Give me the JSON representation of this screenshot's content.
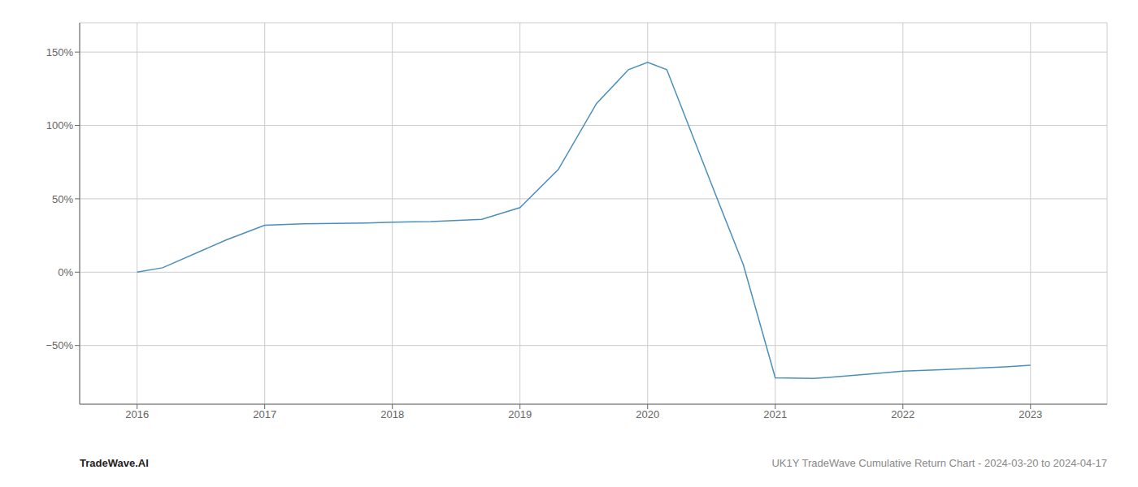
{
  "chart_data": {
    "type": "line",
    "title": "UK1Y TradeWave Cumulative Return Chart - 2024-03-20 to 2024-04-17",
    "annotations": [
      "TradeWave.AI"
    ],
    "x": [
      2016.0,
      2016.2,
      2016.7,
      2017.0,
      2017.3,
      2017.8,
      2018.0,
      2018.3,
      2018.7,
      2019.0,
      2019.3,
      2019.6,
      2019.85,
      2020.0,
      2020.15,
      2020.5,
      2020.75,
      2021.0,
      2021.3,
      2021.8,
      2022.0,
      2022.3,
      2022.8,
      2023.0
    ],
    "values": [
      0.0,
      3.0,
      22.0,
      32.0,
      33.0,
      33.5,
      34.0,
      34.5,
      36.0,
      44.0,
      70.0,
      115.0,
      138.0,
      143.0,
      138.0,
      60.0,
      5.0,
      -72.0,
      -72.5,
      -69.0,
      -67.5,
      -66.5,
      -64.5,
      -63.5
    ],
    "color": "#4a8fba",
    "xlim": [
      2015.55,
      2023.6
    ],
    "ylim": [
      -90,
      170
    ],
    "xticks": [
      2016,
      2017,
      2018,
      2019,
      2020,
      2021,
      2022,
      2023
    ],
    "yticks": [
      {
        "value": -50,
        "label": "−50%"
      },
      {
        "value": 0,
        "label": "0%"
      },
      {
        "value": 50,
        "label": "50%"
      },
      {
        "value": 100,
        "label": "100%"
      },
      {
        "value": 150,
        "label": "150%"
      }
    ],
    "grid": true
  }
}
